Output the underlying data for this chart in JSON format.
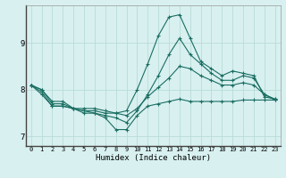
{
  "xlabel": "Humidex (Indice chaleur)",
  "background_color": "#d8f0f0",
  "grid_color": "#b8dcd8",
  "line_color": "#1a6e62",
  "xlim": [
    -0.5,
    23.5
  ],
  "ylim": [
    6.8,
    9.8
  ],
  "yticks": [
    7,
    8,
    9
  ],
  "xticks": [
    0,
    1,
    2,
    3,
    4,
    5,
    6,
    7,
    8,
    9,
    10,
    11,
    12,
    13,
    14,
    15,
    16,
    17,
    18,
    19,
    20,
    21,
    22,
    23
  ],
  "series": [
    [
      8.1,
      8.0,
      7.75,
      7.75,
      7.6,
      7.55,
      7.55,
      7.5,
      7.5,
      7.55,
      8.0,
      8.55,
      9.15,
      9.55,
      9.6,
      9.1,
      8.6,
      8.45,
      8.3,
      8.4,
      8.35,
      8.3,
      7.85,
      7.8
    ],
    [
      8.1,
      8.0,
      7.7,
      7.7,
      7.6,
      7.5,
      7.5,
      7.45,
      7.4,
      7.3,
      7.55,
      7.9,
      8.3,
      8.75,
      9.1,
      8.75,
      8.55,
      8.35,
      8.2,
      8.2,
      8.3,
      8.25,
      7.9,
      7.8
    ],
    [
      8.1,
      7.95,
      7.65,
      7.65,
      7.6,
      7.6,
      7.6,
      7.55,
      7.5,
      7.45,
      7.6,
      7.85,
      8.05,
      8.25,
      8.5,
      8.45,
      8.3,
      8.2,
      8.1,
      8.1,
      8.15,
      8.1,
      7.9,
      7.78
    ],
    [
      8.1,
      7.9,
      7.65,
      7.65,
      7.6,
      7.55,
      7.5,
      7.4,
      7.15,
      7.15,
      7.45,
      7.65,
      7.7,
      7.75,
      7.8,
      7.75,
      7.75,
      7.75,
      7.75,
      7.75,
      7.78,
      7.78,
      7.78,
      7.78
    ]
  ]
}
